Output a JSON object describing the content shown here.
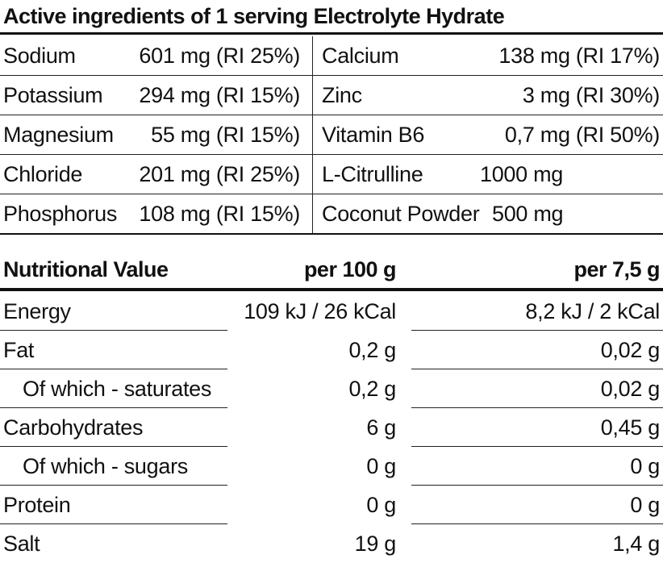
{
  "ingredients": {
    "title": "Active ingredients of 1 serving Electrolyte Hydrate",
    "rows": [
      {
        "left_name": "Sodium",
        "left_value": "601 mg (RI 25%)",
        "right_name": "Calcium",
        "right_value": "138 mg (RI 17%)"
      },
      {
        "left_name": "Potassium",
        "left_value": "294 mg (RI 15%)",
        "right_name": "Zinc",
        "right_value": "3 mg (RI 30%)"
      },
      {
        "left_name": "Magnesium",
        "left_value": "55 mg (RI 15%)",
        "right_name": "Vitamin B6",
        "right_value": "0,7 mg (RI 50%)"
      },
      {
        "left_name": "Chloride",
        "left_value": "201 mg (RI 25%)",
        "right_name": "L-Citrulline",
        "right_value": "1000 mg"
      },
      {
        "left_name": "Phosphorus",
        "left_value": "108 mg (RI 15%)",
        "right_name": "Coconut Powder",
        "right_value": "500 mg"
      }
    ]
  },
  "nutrition": {
    "header": {
      "name": "Nutritional Value",
      "per_100g": "per 100 g",
      "per_serving": "per 7,5 g"
    },
    "rows": [
      {
        "name": "Energy",
        "per_100g": "109 kJ / 26 kCal",
        "per_serving": "8,2 kJ / 2 kCal",
        "indent": false
      },
      {
        "name": "Fat",
        "per_100g": "0,2 g",
        "per_serving": "0,02 g",
        "indent": false
      },
      {
        "name": "Of which - saturates",
        "per_100g": "0,2 g",
        "per_serving": "0,02 g",
        "indent": true
      },
      {
        "name": "Carbohydrates",
        "per_100g": "6 g",
        "per_serving": "0,45 g",
        "indent": false
      },
      {
        "name": "Of which - sugars",
        "per_100g": "0 g",
        "per_serving": "0 g",
        "indent": true
      },
      {
        "name": "Protein",
        "per_100g": "0 g",
        "per_serving": "0 g",
        "indent": false
      },
      {
        "name": "Salt",
        "per_100g": "19 g",
        "per_serving": "1,4 g",
        "indent": false
      }
    ]
  }
}
